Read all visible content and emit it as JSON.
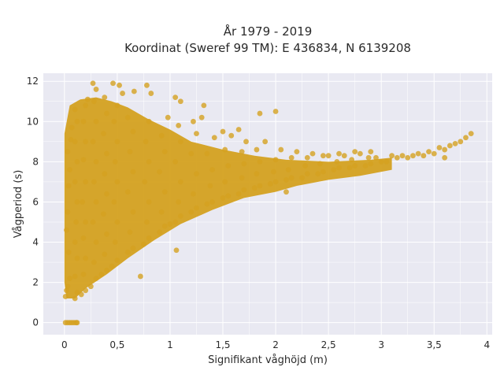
{
  "chart_data": {
    "type": "scatter",
    "title_line1": "År 1979 - 2019",
    "title_line2": "Koordinat (Sweref 99 TM): E 436834, N 6139208",
    "xlabel": "Signifikant våghöjd (m)",
    "ylabel": "Vågperiod (s)",
    "xlim": [
      -0.2,
      4.05
    ],
    "ylim": [
      -0.6,
      12.4
    ],
    "x_ticks": [
      0,
      0.5,
      1,
      1.5,
      2,
      2.5,
      3,
      3.5,
      4
    ],
    "x_tick_labels": [
      "0",
      "0,5",
      "1",
      "1,5",
      "2",
      "2,5",
      "3",
      "3,5",
      "4"
    ],
    "y_ticks": [
      0,
      2,
      4,
      6,
      8,
      10,
      12
    ],
    "y_tick_labels": [
      "0",
      "2",
      "4",
      "6",
      "8",
      "10",
      "12"
    ],
    "grid": true,
    "marker_color": "#D4A120",
    "plot_background": "#E9E9F2",
    "series": [
      {
        "points": [
          [
            0.01,
            0
          ],
          [
            0.03,
            0
          ],
          [
            0.05,
            0
          ],
          [
            0.07,
            0
          ],
          [
            0.09,
            0
          ],
          [
            0.11,
            0
          ],
          [
            0.12,
            0
          ],
          [
            0.01,
            1.3
          ],
          [
            0.02,
            1.6
          ],
          [
            0.03,
            1.8
          ],
          [
            0.05,
            2.2
          ],
          [
            0.04,
            3.5
          ],
          [
            0.02,
            4.6
          ],
          [
            0.03,
            5.5
          ],
          [
            0.04,
            6.8
          ],
          [
            0.05,
            7.6
          ],
          [
            0.03,
            8.5
          ],
          [
            0.06,
            9.1
          ],
          [
            0.07,
            9.7
          ],
          [
            0.1,
            1.2
          ],
          [
            0.12,
            1.5
          ],
          [
            0.1,
            2.3
          ],
          [
            0.12,
            3.2
          ],
          [
            0.1,
            4.0
          ],
          [
            0.11,
            5.0
          ],
          [
            0.12,
            6.0
          ],
          [
            0.1,
            7.0
          ],
          [
            0.12,
            8.0
          ],
          [
            0.1,
            9.0
          ],
          [
            0.12,
            10.0
          ],
          [
            0.1,
            10.6
          ],
          [
            0.16,
            1.4
          ],
          [
            0.2,
            1.6
          ],
          [
            0.18,
            2.4
          ],
          [
            0.2,
            3.2
          ],
          [
            0.18,
            4.2
          ],
          [
            0.2,
            5.0
          ],
          [
            0.17,
            6.0
          ],
          [
            0.2,
            7.0
          ],
          [
            0.18,
            8.1
          ],
          [
            0.2,
            9.0
          ],
          [
            0.18,
            10.0
          ],
          [
            0.2,
            10.8
          ],
          [
            0.22,
            11.1
          ],
          [
            0.25,
            1.8
          ],
          [
            0.3,
            2.2
          ],
          [
            0.28,
            3.0
          ],
          [
            0.3,
            4.0
          ],
          [
            0.27,
            5.0
          ],
          [
            0.3,
            6.0
          ],
          [
            0.28,
            7.0
          ],
          [
            0.3,
            8.0
          ],
          [
            0.27,
            9.0
          ],
          [
            0.3,
            10.0
          ],
          [
            0.28,
            11.0
          ],
          [
            0.3,
            11.6
          ],
          [
            0.27,
            11.9
          ],
          [
            0.35,
            2.4
          ],
          [
            0.4,
            2.6
          ],
          [
            0.38,
            3.4
          ],
          [
            0.4,
            4.4
          ],
          [
            0.37,
            5.4
          ],
          [
            0.4,
            6.4
          ],
          [
            0.38,
            7.4
          ],
          [
            0.4,
            8.4
          ],
          [
            0.37,
            9.4
          ],
          [
            0.4,
            10.4
          ],
          [
            0.38,
            11.2
          ],
          [
            0.46,
            11.9
          ],
          [
            0.52,
            11.8
          ],
          [
            0.45,
            2.8
          ],
          [
            0.5,
            3.1
          ],
          [
            0.48,
            4.0
          ],
          [
            0.5,
            5.0
          ],
          [
            0.47,
            6.0
          ],
          [
            0.5,
            7.0
          ],
          [
            0.48,
            8.0
          ],
          [
            0.5,
            9.0
          ],
          [
            0.47,
            10.0
          ],
          [
            0.5,
            10.8
          ],
          [
            0.55,
            11.4
          ],
          [
            0.6,
            3.5
          ],
          [
            0.65,
            3.7
          ],
          [
            0.62,
            4.5
          ],
          [
            0.65,
            5.5
          ],
          [
            0.6,
            6.5
          ],
          [
            0.65,
            7.5
          ],
          [
            0.62,
            8.5
          ],
          [
            0.65,
            9.5
          ],
          [
            0.6,
            10.2
          ],
          [
            0.66,
            11.5
          ],
          [
            0.78,
            11.8
          ],
          [
            0.82,
            11.4
          ],
          [
            0.75,
            3.9
          ],
          [
            0.8,
            4.2
          ],
          [
            0.78,
            5.0
          ],
          [
            0.8,
            6.0
          ],
          [
            0.76,
            7.0
          ],
          [
            0.8,
            8.0
          ],
          [
            0.77,
            9.0
          ],
          [
            0.8,
            10.0
          ],
          [
            0.72,
            2.3
          ],
          [
            0.9,
            4.5
          ],
          [
            0.95,
            4.8
          ],
          [
            0.92,
            5.5
          ],
          [
            0.95,
            6.5
          ],
          [
            0.9,
            7.5
          ],
          [
            0.95,
            8.5
          ],
          [
            0.92,
            9.3
          ],
          [
            0.98,
            10.2
          ],
          [
            1.05,
            11.2
          ],
          [
            1.1,
            11.0
          ],
          [
            1.0,
            4.9
          ],
          [
            1.05,
            5.0
          ],
          [
            1.1,
            5.3
          ],
          [
            1.08,
            6.0
          ],
          [
            1.1,
            7.0
          ],
          [
            1.05,
            8.0
          ],
          [
            1.1,
            9.0
          ],
          [
            1.08,
            9.8
          ],
          [
            1.2,
            5.5
          ],
          [
            1.25,
            5.7
          ],
          [
            1.22,
            6.4
          ],
          [
            1.25,
            7.4
          ],
          [
            1.2,
            8.4
          ],
          [
            1.25,
            9.4
          ],
          [
            1.22,
            10.0
          ],
          [
            1.3,
            10.2
          ],
          [
            1.32,
            10.8
          ],
          [
            1.06,
            3.6
          ],
          [
            1.35,
            5.9
          ],
          [
            1.4,
            6.0
          ],
          [
            1.38,
            6.8
          ],
          [
            1.4,
            7.6
          ],
          [
            1.35,
            8.4
          ],
          [
            1.42,
            9.2
          ],
          [
            1.5,
            9.5
          ],
          [
            1.5,
            6.2
          ],
          [
            1.55,
            6.3
          ],
          [
            1.52,
            7.0
          ],
          [
            1.55,
            7.8
          ],
          [
            1.52,
            8.6
          ],
          [
            1.58,
            9.3
          ],
          [
            1.65,
            9.6
          ],
          [
            1.65,
            6.4
          ],
          [
            1.7,
            6.6
          ],
          [
            1.68,
            7.2
          ],
          [
            1.7,
            7.9
          ],
          [
            1.68,
            8.5
          ],
          [
            1.72,
            9.0
          ],
          [
            1.8,
            6.7
          ],
          [
            1.85,
            6.8
          ],
          [
            1.82,
            7.4
          ],
          [
            1.85,
            8.0
          ],
          [
            1.82,
            8.6
          ],
          [
            1.9,
            9.0
          ],
          [
            1.85,
            10.4
          ],
          [
            1.95,
            6.9
          ],
          [
            2.0,
            7.0
          ],
          [
            1.98,
            7.5
          ],
          [
            2.0,
            8.1
          ],
          [
            2.05,
            8.6
          ],
          [
            2.0,
            10.5
          ],
          [
            2.1,
            7.1
          ],
          [
            2.15,
            7.2
          ],
          [
            2.12,
            7.6
          ],
          [
            2.15,
            8.2
          ],
          [
            2.2,
            8.5
          ],
          [
            2.1,
            6.5
          ],
          [
            2.25,
            7.2
          ],
          [
            2.3,
            7.4
          ],
          [
            2.28,
            7.8
          ],
          [
            2.3,
            8.2
          ],
          [
            2.35,
            8.4
          ],
          [
            2.4,
            7.4
          ],
          [
            2.45,
            7.5
          ],
          [
            2.42,
            7.9
          ],
          [
            2.45,
            8.3
          ],
          [
            2.5,
            8.3
          ],
          [
            2.55,
            7.6
          ],
          [
            2.6,
            7.7
          ],
          [
            2.58,
            8.0
          ],
          [
            2.6,
            8.4
          ],
          [
            2.65,
            8.3
          ],
          [
            2.7,
            7.7
          ],
          [
            2.75,
            7.8
          ],
          [
            2.72,
            8.1
          ],
          [
            2.75,
            8.5
          ],
          [
            2.8,
            8.4
          ],
          [
            2.85,
            7.8
          ],
          [
            2.9,
            7.9
          ],
          [
            2.88,
            8.2
          ],
          [
            2.9,
            8.5
          ],
          [
            2.95,
            8.2
          ],
          [
            3.0,
            8.0
          ],
          [
            3.05,
            8.0
          ],
          [
            3.1,
            8.3
          ],
          [
            3.15,
            8.2
          ],
          [
            3.2,
            8.3
          ],
          [
            3.25,
            8.2
          ],
          [
            3.3,
            8.3
          ],
          [
            3.35,
            8.4
          ],
          [
            3.4,
            8.3
          ],
          [
            3.45,
            8.5
          ],
          [
            3.5,
            8.4
          ],
          [
            3.55,
            8.7
          ],
          [
            3.6,
            8.6
          ],
          [
            3.65,
            8.8
          ],
          [
            3.7,
            8.9
          ],
          [
            3.75,
            9.0
          ],
          [
            3.8,
            9.2
          ],
          [
            3.85,
            9.4
          ],
          [
            3.6,
            8.2
          ]
        ]
      }
    ]
  }
}
